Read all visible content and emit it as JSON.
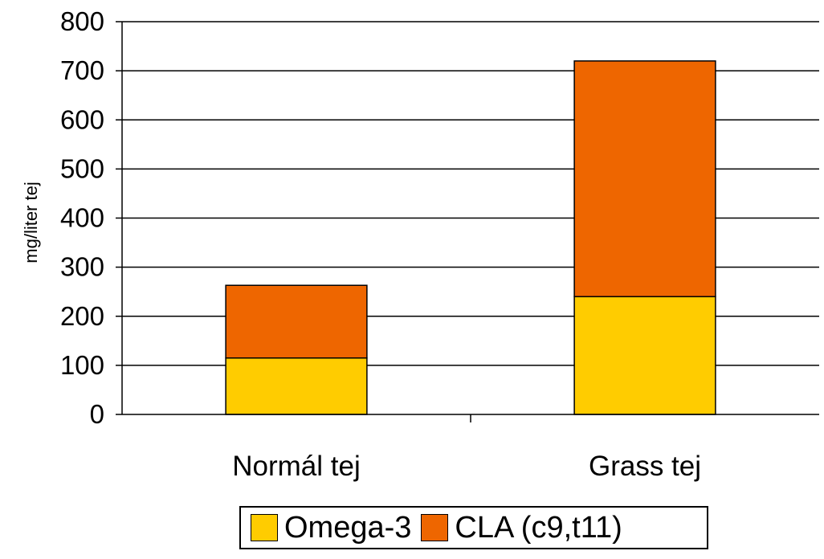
{
  "chart_data": {
    "type": "bar",
    "stacked": true,
    "categories": [
      "Normál tej",
      "Grass tej"
    ],
    "series": [
      {
        "name": "Omega-3",
        "values": [
          115,
          240
        ],
        "color": "#FFCC00"
      },
      {
        "name": "CLA (c9,t11)",
        "values": [
          148,
          480
        ],
        "color": "#EE6600"
      }
    ],
    "title": "",
    "xlabel": "",
    "ylabel": "mg/liter tej",
    "ylim": [
      0,
      800
    ],
    "yticks": [
      "0",
      "100",
      "200",
      "300",
      "400",
      "500",
      "600",
      "700",
      "800"
    ],
    "grid": true,
    "legend_position": "bottom"
  }
}
